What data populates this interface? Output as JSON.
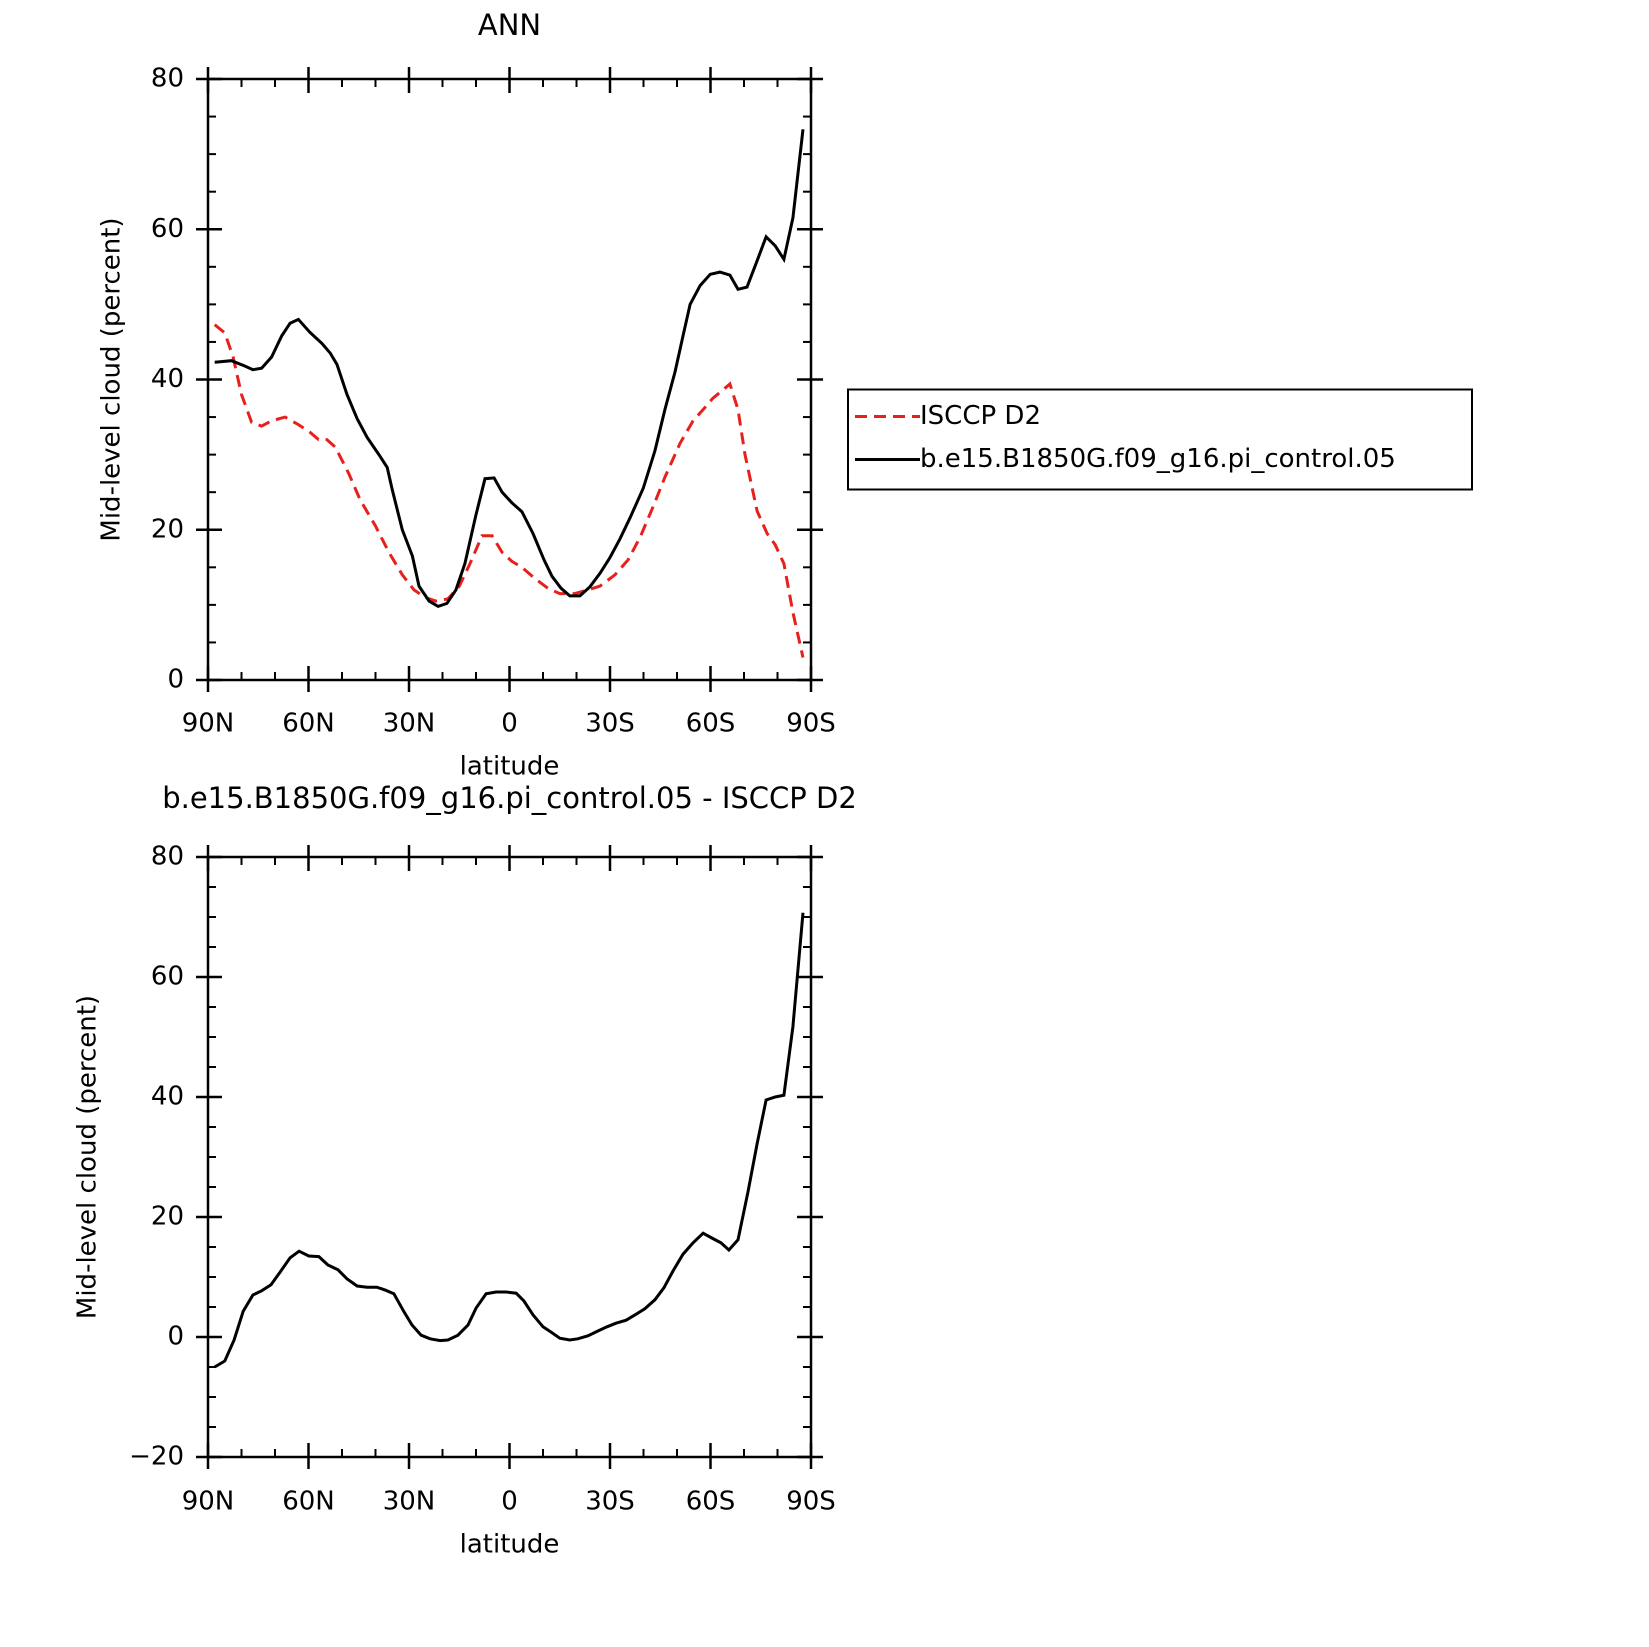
{
  "chart_data": [
    {
      "type": "line",
      "title": "ANN",
      "xlabel": "latitude",
      "ylabel": "Mid-level cloud (percent)",
      "xlim": [
        90,
        -90
      ],
      "xticks": [
        {
          "value": 90,
          "label": "90N"
        },
        {
          "value": 60,
          "label": "60N"
        },
        {
          "value": 30,
          "label": "30N"
        },
        0,
        {
          "value": -30,
          "label": "30S"
        },
        {
          "value": -60,
          "label": "60S"
        },
        {
          "value": -90,
          "label": "90S"
        }
      ],
      "ylim": [
        0,
        80
      ],
      "yticks": [
        0,
        20,
        40,
        60,
        80
      ],
      "legend": "right",
      "series": [
        {
          "name": "ISCCP D2",
          "color": "#e8201c",
          "dash": true,
          "x": [
            88,
            85,
            82.5,
            80,
            77,
            74,
            71,
            67,
            63,
            59.6,
            57,
            54.5,
            52,
            48,
            44.6,
            40,
            36,
            32,
            28.5,
            25.2,
            22,
            18.4,
            15,
            11.8,
            8.2,
            5.2,
            2.2,
            -0.7,
            -3.7,
            -7.6,
            -11.5,
            -15,
            -19.5,
            -23.4,
            -27,
            -31.5,
            -35.4,
            -39,
            -42.8,
            -46.4,
            -50.9,
            -54.8,
            -57.8,
            -60.7,
            -63.4,
            -65.8,
            -68.2,
            -70.3,
            -73.9,
            -76.9,
            -79.3,
            -81.9,
            -84.6,
            -87.6
          ],
          "values": [
            47.3,
            46.2,
            43,
            38,
            34.3,
            33.8,
            34.5,
            35,
            34,
            33,
            32,
            32,
            31,
            27.5,
            24,
            20.5,
            17,
            14,
            12,
            11,
            10.5,
            10.8,
            12.5,
            15.5,
            19.2,
            19.2,
            17,
            15.8,
            15,
            13.5,
            12.2,
            11.5,
            11.5,
            12,
            12.5,
            14,
            16,
            19,
            23,
            27,
            31.5,
            34.5,
            36,
            37.5,
            38.5,
            39.4,
            36,
            30,
            22.5,
            19.5,
            18,
            15.5,
            9,
            3
          ]
        },
        {
          "name": "b.e15.B1850G.f09_g16.pi_control.05",
          "color": "#000000",
          "dash": false,
          "x": [
            88,
            83,
            79,
            76.6,
            74,
            71,
            68,
            65.5,
            63,
            59.6,
            56,
            53.5,
            51.5,
            48.5,
            45.5,
            42.5,
            39,
            36.5,
            35,
            32,
            29,
            27,
            24,
            21.3,
            18.7,
            16,
            13.3,
            10,
            7.3,
            4.6,
            2.2,
            -0.7,
            -3.7,
            -7,
            -10.3,
            -12.7,
            -15.4,
            -18,
            -21,
            -24,
            -27,
            -30,
            -33,
            -36,
            -39.9,
            -43.4,
            -46.4,
            -49.4,
            -51.8,
            -53.9,
            -56.9,
            -59.9,
            -62.8,
            -65.8,
            -68.2,
            -70.9,
            -73.9,
            -76.6,
            -79.3,
            -81.9,
            -84.6,
            -87.6
          ],
          "values": [
            42.3,
            42.5,
            41.8,
            41.3,
            41.5,
            43,
            45.8,
            47.5,
            48,
            46.3,
            44.8,
            43.5,
            42,
            38,
            34.8,
            32.3,
            30,
            28.3,
            25.3,
            20,
            16.5,
            12.5,
            10.5,
            9.8,
            10.2,
            12,
            15.5,
            22,
            26.8,
            26.9,
            25,
            23.6,
            22.4,
            19.5,
            16,
            13.8,
            12.2,
            11.2,
            11.2,
            12.4,
            14.2,
            16.3,
            18.8,
            21.6,
            25.5,
            30.5,
            36,
            41,
            45.8,
            50,
            52.5,
            54,
            54.3,
            53.9,
            52,
            52.3,
            55.8,
            59,
            57.8,
            56,
            61.5,
            73.3
          ]
        }
      ]
    },
    {
      "type": "line",
      "title": "b.e15.B1850G.f09_g16.pi_control.05 - ISCCP D2",
      "xlabel": "latitude",
      "ylabel": "Mid-level cloud (percent)",
      "xlim": [
        90,
        -90
      ],
      "xticks": [
        {
          "value": 90,
          "label": "90N"
        },
        {
          "value": 60,
          "label": "60N"
        },
        {
          "value": 30,
          "label": "30N"
        },
        0,
        {
          "value": -30,
          "label": "30S"
        },
        {
          "value": -60,
          "label": "60S"
        },
        {
          "value": -90,
          "label": "90S"
        }
      ],
      "ylim": [
        -20,
        80
      ],
      "yticks": [
        {
          "value": -20,
          "label": "−20"
        },
        0,
        20,
        40,
        60,
        80
      ],
      "series": [
        {
          "color": "#000000",
          "dash": false,
          "x": [
            88,
            85,
            82.2,
            79.5,
            76.6,
            74,
            71.2,
            68.5,
            65.5,
            62.8,
            59.9,
            56.9,
            54.2,
            51.2,
            48.5,
            45.5,
            42.5,
            39.6,
            37,
            34.5,
            31.5,
            29.1,
            26.4,
            23.7,
            20.7,
            18.4,
            15.4,
            12.4,
            10,
            7,
            4,
            1,
            -2,
            -4.3,
            -7,
            -10,
            -12.7,
            -15,
            -18,
            -20.4,
            -23.4,
            -26.4,
            -29.1,
            -31.8,
            -34.8,
            -37.5,
            -40.4,
            -43.4,
            -46.1,
            -48.8,
            -51.8,
            -54.8,
            -57.8,
            -60.4,
            -63.1,
            -65.5,
            -68.2,
            -71.2,
            -73.9,
            -76.6,
            -79.3,
            -81.9,
            -84.6,
            -87.6
          ],
          "values": [
            -5,
            -4,
            -0.5,
            4.3,
            7,
            7.7,
            8.7,
            10.8,
            13.2,
            14.3,
            13.5,
            13.4,
            12,
            11.2,
            9.7,
            8.5,
            8.3,
            8.3,
            7.8,
            7.2,
            4.2,
            2,
            0.3,
            -0.3,
            -0.6,
            -0.5,
            0.3,
            2,
            4.8,
            7.2,
            7.5,
            7.5,
            7.3,
            6,
            3.7,
            1.7,
            0.7,
            -0.2,
            -0.5,
            -0.3,
            0.2,
            1,
            1.7,
            2.3,
            2.8,
            3.7,
            4.7,
            6.2,
            8.2,
            11,
            13.8,
            15.7,
            17.3,
            16.5,
            15.7,
            14.5,
            16.2,
            24.2,
            32.2,
            39.5,
            40,
            40.3,
            51.7,
            70.7
          ]
        }
      ]
    }
  ]
}
